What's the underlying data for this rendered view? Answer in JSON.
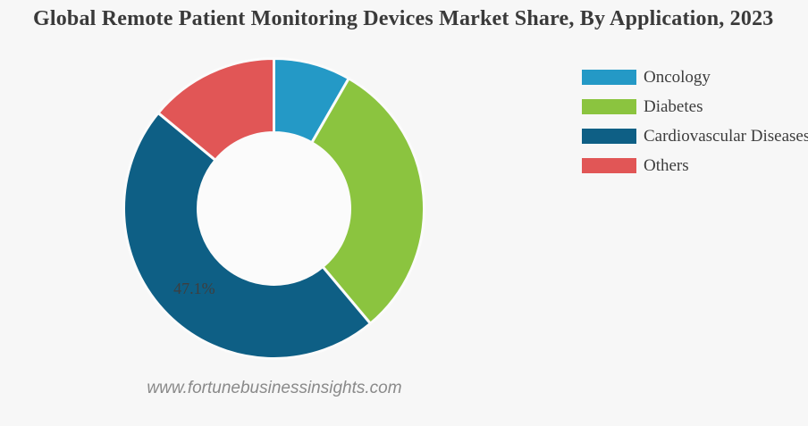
{
  "page": {
    "title": "Global Remote Patient Monitoring Devices Market Share, By Application, 2023",
    "watermark": "www.fortunebusinessinsights.com",
    "background": "#f7f7f7"
  },
  "legend": {
    "items": [
      {
        "label": "Oncology",
        "color": "#2499c6"
      },
      {
        "label": "Diabetes",
        "color": "#8bc43f"
      },
      {
        "label": "Cardiovascular Diseases",
        "color": "#0e5f85"
      },
      {
        "label": "Others",
        "color": "#e15656"
      }
    ]
  },
  "chart_data": {
    "type": "pie",
    "subtype": "donut",
    "title": "Global Remote Patient Monitoring Devices Market Share, By Application, 2023",
    "categories": [
      "Oncology",
      "Diabetes",
      "Cardiovascular Diseases",
      "Others"
    ],
    "values": [
      8.3,
      30.6,
      47.1,
      14.0
    ],
    "colors": [
      "#2499c6",
      "#8bc43f",
      "#0e5f85",
      "#e15656"
    ],
    "data_labels": [
      "",
      "",
      "47.1%",
      ""
    ],
    "start_angle_deg": 0,
    "direction": "clockwise",
    "legend_position": "right",
    "hole_color": "#fbfbfb",
    "gap_color": "#fbfbfb"
  }
}
